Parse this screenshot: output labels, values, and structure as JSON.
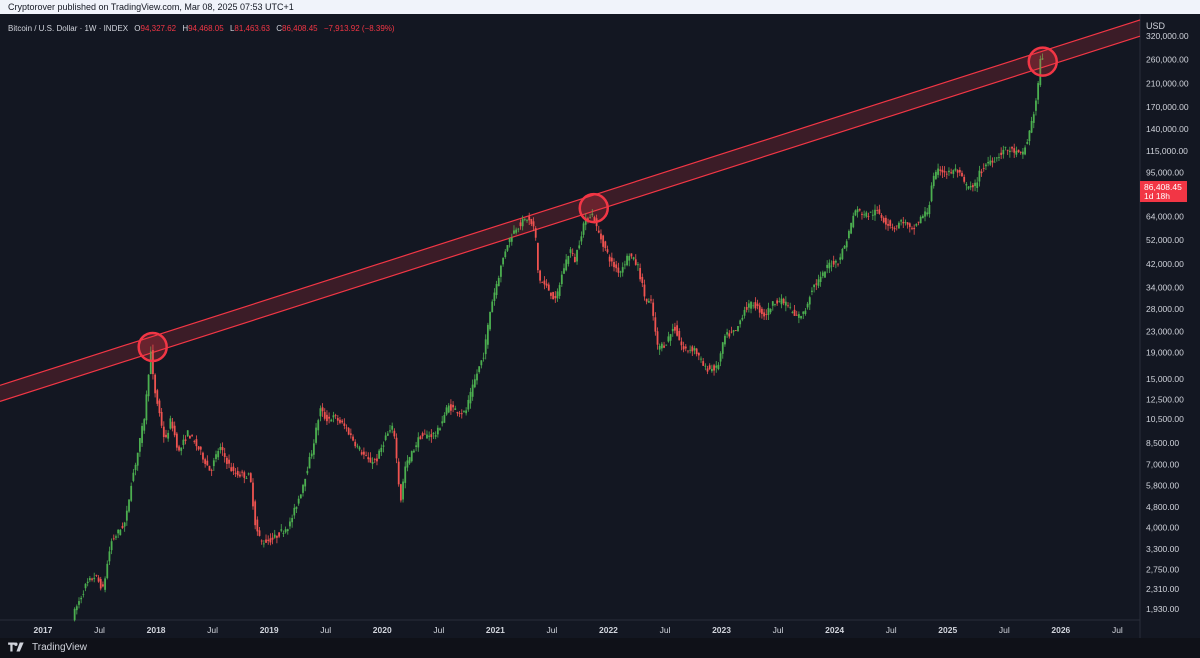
{
  "header": {
    "published": "Cryptorover published on TradingView.com, Mar 08, 2025 07:53 UTC+1"
  },
  "legend": {
    "symbol": "Bitcoin / U.S. Dollar · 1W · INDEX",
    "open_label": "O",
    "open": "94,327.62",
    "high_label": "H",
    "high": "94,468.05",
    "low_label": "L",
    "low": "81,463.63",
    "close_label": "C",
    "close": "86,408.45",
    "change": "−7,913.92 (−8.39%)"
  },
  "price_axis": {
    "currency": "USD",
    "ticks": [
      "320,000.00",
      "260,000.00",
      "210,000.00",
      "170,000.00",
      "140,000.00",
      "115,000.00",
      "95,000.00",
      "64,000.00",
      "52,000.00",
      "42,000.00",
      "34,000.00",
      "28,000.00",
      "23,000.00",
      "19,000.00",
      "15,000.00",
      "12,500.00",
      "10,500.00",
      "8,500.00",
      "7,000.00",
      "5,800.00",
      "4,800.00",
      "4,000.00",
      "3,300.00",
      "2,750.00",
      "2,310.00",
      "1,930.00"
    ],
    "last_price": "86,408.45",
    "countdown": "1d 18h"
  },
  "time_axis": {
    "ticks": [
      {
        "label": "2017",
        "year": 2017.0,
        "bold": true
      },
      {
        "label": "Jul",
        "year": 2017.5,
        "bold": false
      },
      {
        "label": "2018",
        "year": 2018.0,
        "bold": true
      },
      {
        "label": "Jul",
        "year": 2018.5,
        "bold": false
      },
      {
        "label": "2019",
        "year": 2019.0,
        "bold": true
      },
      {
        "label": "Jul",
        "year": 2019.5,
        "bold": false
      },
      {
        "label": "2020",
        "year": 2020.0,
        "bold": true
      },
      {
        "label": "Jul",
        "year": 2020.5,
        "bold": false
      },
      {
        "label": "2021",
        "year": 2021.0,
        "bold": true
      },
      {
        "label": "Jul",
        "year": 2021.5,
        "bold": false
      },
      {
        "label": "2022",
        "year": 2022.0,
        "bold": true
      },
      {
        "label": "Jul",
        "year": 2022.5,
        "bold": false
      },
      {
        "label": "2023",
        "year": 2023.0,
        "bold": true
      },
      {
        "label": "Jul",
        "year": 2023.5,
        "bold": false
      },
      {
        "label": "2024",
        "year": 2024.0,
        "bold": true
      },
      {
        "label": "Jul",
        "year": 2024.5,
        "bold": false
      },
      {
        "label": "2025",
        "year": 2025.0,
        "bold": true
      },
      {
        "label": "Jul",
        "year": 2025.5,
        "bold": false
      },
      {
        "label": "2026",
        "year": 2026.0,
        "bold": true
      },
      {
        "label": "Jul",
        "year": 2026.5,
        "bold": false
      }
    ]
  },
  "colors": {
    "background": "#131722",
    "up": "#26a69a",
    "up_green": "#4caf50",
    "down": "#ef5350",
    "channel": "#f23645",
    "text": "#d1d4dc",
    "legend_values": "#f23645"
  },
  "chart_data": {
    "type": "candlestick",
    "scale": "log",
    "ylim": [
      1750,
      390000
    ],
    "xlim": [
      2016.62,
      2026.7
    ],
    "path": [
      [
        2017.28,
        1800
      ],
      [
        2017.4,
        2400
      ],
      [
        2017.48,
        2600
      ],
      [
        2017.55,
        2300
      ],
      [
        2017.62,
        3500
      ],
      [
        2017.75,
        4200
      ],
      [
        2017.8,
        6000
      ],
      [
        2017.85,
        7500
      ],
      [
        2017.92,
        11000
      ],
      [
        2017.97,
        19500
      ],
      [
        2018.0,
        14000
      ],
      [
        2018.05,
        11000
      ],
      [
        2018.1,
        8500
      ],
      [
        2018.15,
        10500
      ],
      [
        2018.22,
        7800
      ],
      [
        2018.3,
        9300
      ],
      [
        2018.4,
        8000
      ],
      [
        2018.5,
        6600
      ],
      [
        2018.58,
        8200
      ],
      [
        2018.7,
        6500
      ],
      [
        2018.85,
        6300
      ],
      [
        2018.9,
        4000
      ],
      [
        2018.95,
        3500
      ],
      [
        2019.05,
        3600
      ],
      [
        2019.2,
        4100
      ],
      [
        2019.3,
        5500
      ],
      [
        2019.4,
        8000
      ],
      [
        2019.47,
        11500
      ],
      [
        2019.52,
        10500
      ],
      [
        2019.6,
        10700
      ],
      [
        2019.7,
        9700
      ],
      [
        2019.8,
        8200
      ],
      [
        2019.9,
        7200
      ],
      [
        2019.97,
        7300
      ],
      [
        2020.05,
        9000
      ],
      [
        2020.12,
        9800
      ],
      [
        2020.18,
        5000
      ],
      [
        2020.22,
        6800
      ],
      [
        2020.35,
        9000
      ],
      [
        2020.5,
        9200
      ],
      [
        2020.6,
        11800
      ],
      [
        2020.75,
        11000
      ],
      [
        2020.85,
        15500
      ],
      [
        2020.92,
        19000
      ],
      [
        2020.98,
        29000
      ],
      [
        2021.05,
        38000
      ],
      [
        2021.12,
        50000
      ],
      [
        2021.2,
        58000
      ],
      [
        2021.3,
        63000
      ],
      [
        2021.37,
        57000
      ],
      [
        2021.4,
        37000
      ],
      [
        2021.5,
        33000
      ],
      [
        2021.55,
        30000
      ],
      [
        2021.62,
        40000
      ],
      [
        2021.68,
        48000
      ],
      [
        2021.72,
        43000
      ],
      [
        2021.8,
        60000
      ],
      [
        2021.87,
        66500
      ],
      [
        2021.92,
        57000
      ],
      [
        2022.0,
        47000
      ],
      [
        2022.05,
        42000
      ],
      [
        2022.12,
        39000
      ],
      [
        2022.2,
        46000
      ],
      [
        2022.28,
        41000
      ],
      [
        2022.35,
        30000
      ],
      [
        2022.4,
        29500
      ],
      [
        2022.45,
        20000
      ],
      [
        2022.52,
        20500
      ],
      [
        2022.6,
        24000
      ],
      [
        2022.68,
        19500
      ],
      [
        2022.78,
        19700
      ],
      [
        2022.87,
        16500
      ],
      [
        2022.98,
        16500
      ],
      [
        2023.05,
        22000
      ],
      [
        2023.15,
        23000
      ],
      [
        2023.22,
        28000
      ],
      [
        2023.3,
        29500
      ],
      [
        2023.4,
        26500
      ],
      [
        2023.5,
        30500
      ],
      [
        2023.6,
        29400
      ],
      [
        2023.67,
        26000
      ],
      [
        2023.75,
        27000
      ],
      [
        2023.82,
        34000
      ],
      [
        2023.9,
        37000
      ],
      [
        2023.97,
        42000
      ],
      [
        2024.05,
        43000
      ],
      [
        2024.12,
        51000
      ],
      [
        2024.2,
        68000
      ],
      [
        2024.3,
        65000
      ],
      [
        2024.4,
        67000
      ],
      [
        2024.47,
        61000
      ],
      [
        2024.55,
        58000
      ],
      [
        2024.62,
        62000
      ],
      [
        2024.7,
        56000
      ],
      [
        2024.78,
        63000
      ],
      [
        2024.85,
        68000
      ],
      [
        2024.88,
        88000
      ],
      [
        2024.95,
        98000
      ],
      [
        2025.02,
        94000
      ],
      [
        2025.1,
        97000
      ],
      [
        2025.18,
        84000
      ],
      [
        2025.25,
        82000
      ],
      [
        2025.3,
        94000
      ],
      [
        2025.38,
        105000
      ],
      [
        2025.45,
        108000
      ],
      [
        2025.52,
        117000
      ],
      [
        2025.6,
        115000
      ],
      [
        2025.67,
        110000
      ],
      [
        2025.72,
        124000
      ],
      [
        2025.8,
        178000
      ],
      [
        2025.82,
        215000
      ],
      [
        2025.84,
        260000
      ]
    ],
    "channel_upper": [
      [
        2016.62,
        14200
      ],
      [
        2026.7,
        370000
      ]
    ],
    "channel_lower": [
      [
        2016.62,
        12300
      ],
      [
        2026.7,
        320000
      ]
    ],
    "highlights": [
      [
        2017.97,
        20000
      ],
      [
        2021.87,
        69000
      ],
      [
        2025.84,
        255000
      ]
    ]
  }
}
